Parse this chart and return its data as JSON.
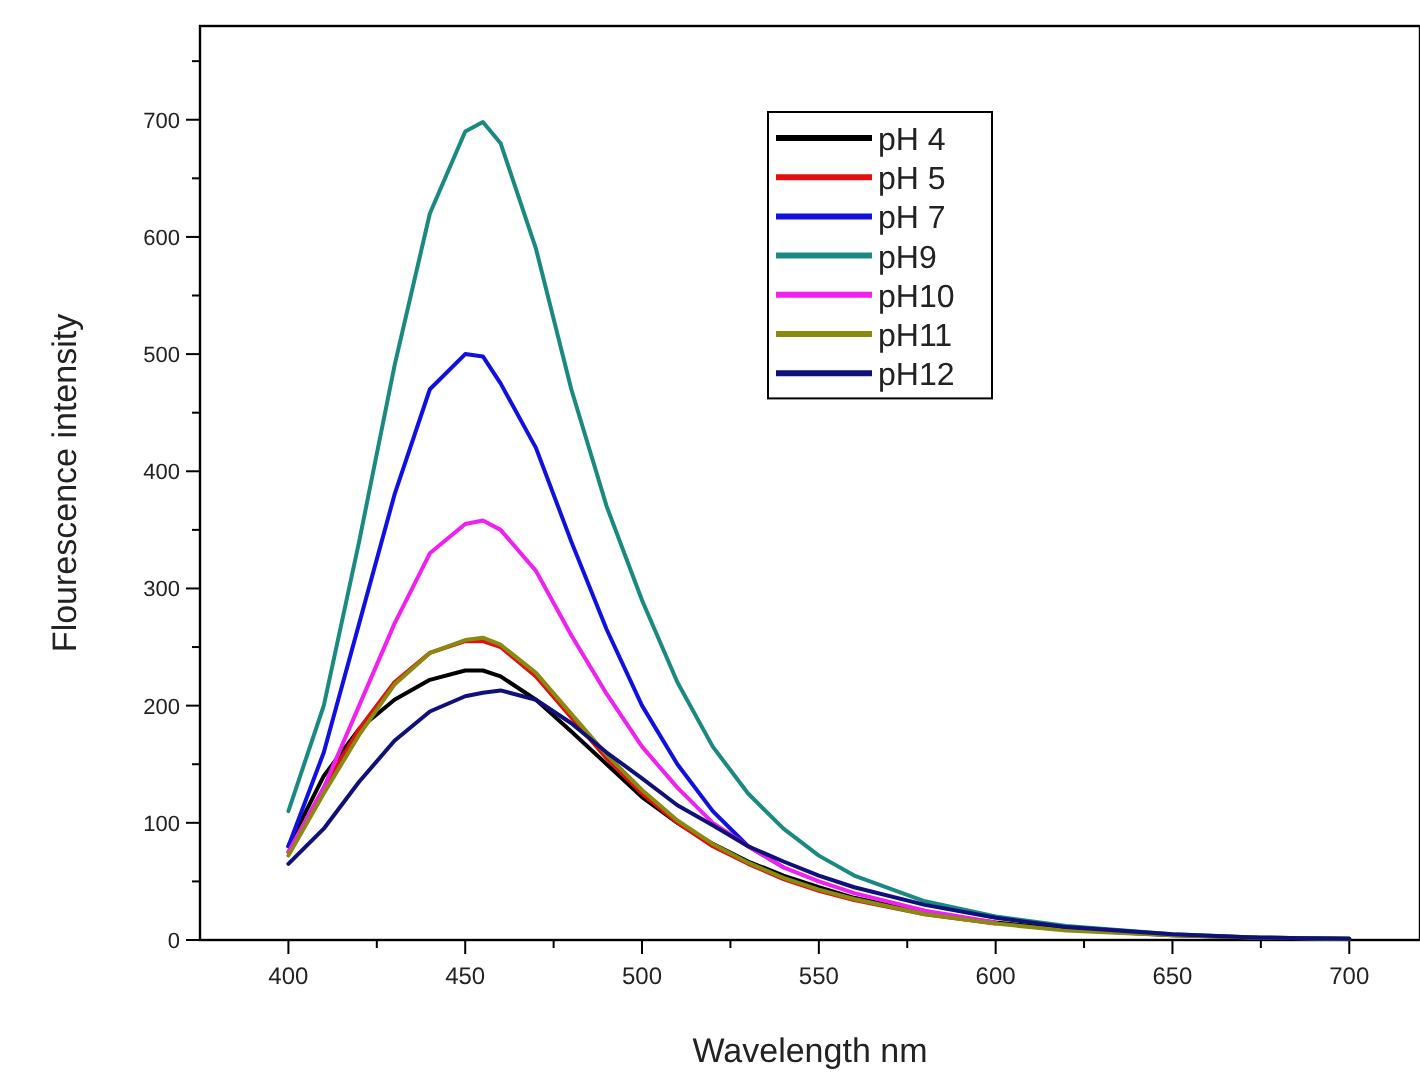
{
  "chart_data": {
    "type": "line",
    "xlabel": "Wavelength nm",
    "ylabel": "Flourescence intensity",
    "x": [
      400,
      410,
      420,
      430,
      440,
      450,
      455,
      460,
      470,
      480,
      490,
      500,
      510,
      520,
      530,
      540,
      550,
      560,
      580,
      600,
      620,
      650,
      675,
      700
    ],
    "xlim": [
      375,
      720
    ],
    "ylim": [
      0,
      780
    ],
    "xticks": [
      400,
      {
        "value": 425,
        "label": null
      },
      450,
      {
        "value": 475,
        "label": null
      },
      500,
      {
        "value": 525,
        "label": null
      },
      550,
      {
        "value": 575,
        "label": null
      },
      600,
      {
        "value": 625,
        "label": null
      },
      650,
      {
        "value": 675,
        "label": null
      },
      700
    ],
    "yticks": [
      0,
      {
        "value": 50,
        "label": null
      },
      100,
      {
        "value": 150,
        "label": null
      },
      200,
      {
        "value": 250,
        "label": null
      },
      300,
      {
        "value": 350,
        "label": null
      },
      400,
      {
        "value": 450,
        "label": null
      },
      500,
      {
        "value": 550,
        "label": null
      },
      600,
      {
        "value": 650,
        "label": null
      },
      700,
      {
        "value": 750,
        "label": null
      }
    ],
    "grid": false,
    "legend": "top right",
    "line_style": "solid",
    "series": [
      {
        "name": "pH 4",
        "color": "#000000",
        "values": [
          80,
          140,
          180,
          205,
          222,
          230,
          230,
          225,
          205,
          178,
          150,
          122,
          100,
          82,
          67,
          55,
          45,
          36,
          23,
          15,
          9,
          4,
          2,
          1
        ]
      },
      {
        "name": "pH 5",
        "color": "#e01010",
        "values": [
          75,
          130,
          180,
          220,
          245,
          255,
          255,
          250,
          225,
          190,
          155,
          125,
          100,
          80,
          65,
          52,
          42,
          34,
          22,
          14,
          null,
          null,
          null,
          null
        ]
      },
      {
        "name": "pH 7",
        "color": "#1010e0",
        "values": [
          80,
          160,
          270,
          380,
          470,
          500,
          498,
          475,
          420,
          340,
          265,
          200,
          150,
          110,
          80,
          62,
          null,
          null,
          null,
          null,
          null,
          null,
          null,
          null
        ]
      },
      {
        "name": "pH9",
        "color": "#1a8a80",
        "values": [
          110,
          200,
          340,
          490,
          620,
          690,
          698,
          680,
          590,
          470,
          370,
          290,
          220,
          165,
          125,
          95,
          72,
          55,
          33,
          20,
          12,
          5,
          2,
          1
        ]
      },
      {
        "name": "pH10",
        "color": "#f020f0",
        "values": [
          75,
          130,
          200,
          270,
          330,
          355,
          358,
          350,
          315,
          260,
          210,
          165,
          130,
          100,
          80,
          62,
          50,
          40,
          25,
          15,
          null,
          null,
          null,
          null
        ]
      },
      {
        "name": "pH11",
        "color": "#8a8a10",
        "values": [
          72,
          125,
          175,
          218,
          245,
          256,
          258,
          252,
          228,
          193,
          158,
          128,
          102,
          82,
          66,
          53,
          43,
          35,
          22,
          14,
          8,
          4,
          2,
          1
        ]
      },
      {
        "name": "pH12",
        "color": "#10107a",
        "values": [
          65,
          95,
          135,
          170,
          195,
          208,
          211,
          213,
          205,
          185,
          160,
          138,
          115,
          98,
          80,
          67,
          55,
          45,
          30,
          19,
          11,
          5,
          2,
          1
        ]
      }
    ]
  }
}
